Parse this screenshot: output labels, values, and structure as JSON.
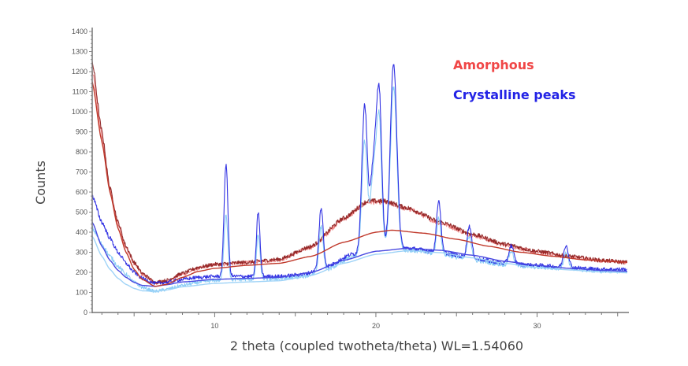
{
  "chart_data": {
    "type": "line",
    "title": "",
    "xlabel": "2 theta (coupled twotheta/theta) WL=1.54060",
    "ylabel": "Counts",
    "xlim": [
      2.4,
      35.6
    ],
    "ylim": [
      0,
      1400
    ],
    "xticks": [
      10,
      20,
      30
    ],
    "yticks": [
      0,
      100,
      200,
      300,
      400,
      500,
      600,
      700,
      800,
      900,
      1000,
      1100,
      1200,
      1300,
      1400
    ],
    "grid": false,
    "legend": {
      "placement": "top-right",
      "entries": [
        {
          "label": "Amorphous",
          "color": "#f04646"
        },
        {
          "label": "Crystalline peaks",
          "color": "#2323e6"
        }
      ]
    },
    "series": [
      {
        "name": "Amorphous (scan)",
        "color": "#8b1a1a",
        "kind": "raw",
        "baseline": [
          [
            2.4,
            1250
          ],
          [
            3,
            900
          ],
          [
            3.5,
            620
          ],
          [
            4,
            450
          ],
          [
            4.5,
            330
          ],
          [
            5,
            250
          ],
          [
            5.5,
            195
          ],
          [
            6.3,
            150
          ],
          [
            7,
            160
          ],
          [
            8,
            195
          ],
          [
            9,
            225
          ],
          [
            10,
            240
          ],
          [
            12,
            250
          ],
          [
            14,
            265
          ],
          [
            16,
            330
          ],
          [
            18,
            470
          ],
          [
            19.5,
            555
          ],
          [
            20.5,
            555
          ],
          [
            22,
            520
          ],
          [
            24,
            450
          ],
          [
            26,
            390
          ],
          [
            28,
            340
          ],
          [
            30,
            305
          ],
          [
            32,
            280
          ],
          [
            34,
            260
          ],
          [
            35.6,
            250
          ]
        ],
        "peaks": []
      },
      {
        "name": "Amorphous (scan 2)",
        "color": "#f08080",
        "kind": "raw",
        "baseline": [
          [
            2.4,
            1200
          ],
          [
            3,
            880
          ],
          [
            3.5,
            610
          ],
          [
            4,
            440
          ],
          [
            4.5,
            320
          ],
          [
            5,
            245
          ],
          [
            5.5,
            190
          ],
          [
            6.3,
            145
          ],
          [
            7,
            155
          ],
          [
            8,
            190
          ],
          [
            9,
            220
          ],
          [
            10,
            238
          ],
          [
            12,
            248
          ],
          [
            14,
            262
          ],
          [
            16,
            325
          ],
          [
            18,
            465
          ],
          [
            19.5,
            550
          ],
          [
            20.5,
            550
          ],
          [
            22,
            515
          ],
          [
            24,
            445
          ],
          [
            26,
            385
          ],
          [
            28,
            335
          ],
          [
            30,
            300
          ],
          [
            32,
            277
          ],
          [
            34,
            258
          ],
          [
            35.6,
            248
          ]
        ],
        "peaks": []
      },
      {
        "name": "Amorphous fit",
        "color": "#c0392b",
        "kind": "fit",
        "baseline": [
          [
            2.4,
            1150
          ],
          [
            3,
            850
          ],
          [
            3.5,
            600
          ],
          [
            4,
            420
          ],
          [
            4.5,
            300
          ],
          [
            5,
            215
          ],
          [
            5.5,
            165
          ],
          [
            6.3,
            130
          ],
          [
            7,
            140
          ],
          [
            8,
            175
          ],
          [
            9,
            205
          ],
          [
            10,
            220
          ],
          [
            12,
            235
          ],
          [
            14,
            245
          ],
          [
            16,
            280
          ],
          [
            18,
            350
          ],
          [
            20,
            400
          ],
          [
            21,
            410
          ],
          [
            23,
            395
          ],
          [
            25,
            365
          ],
          [
            27,
            330
          ],
          [
            29,
            300
          ],
          [
            31,
            280
          ],
          [
            33,
            262
          ],
          [
            35.6,
            250
          ]
        ],
        "peaks": []
      },
      {
        "name": "Crystalline (scan)",
        "color": "#1e1ee0",
        "kind": "raw",
        "baseline": [
          [
            2.4,
            580
          ],
          [
            3,
            450
          ],
          [
            3.5,
            370
          ],
          [
            4,
            300
          ],
          [
            4.5,
            245
          ],
          [
            5,
            200
          ],
          [
            5.5,
            170
          ],
          [
            6.3,
            145
          ],
          [
            7,
            150
          ],
          [
            8,
            165
          ],
          [
            9,
            175
          ],
          [
            10,
            180
          ],
          [
            12,
            180
          ],
          [
            14,
            180
          ],
          [
            15.5,
            190
          ],
          [
            17,
            230
          ],
          [
            18.5,
            290
          ],
          [
            20,
            315
          ],
          [
            22,
            320
          ],
          [
            24,
            300
          ],
          [
            26,
            270
          ],
          [
            28,
            245
          ],
          [
            30,
            235
          ],
          [
            32,
            225
          ],
          [
            34,
            215
          ],
          [
            35.6,
            215
          ]
        ],
        "peaks": [
          [
            10.7,
            560,
            0.12
          ],
          [
            12.7,
            320,
            0.11
          ],
          [
            16.6,
            300,
            0.13
          ],
          [
            19.3,
            730,
            0.17
          ],
          [
            19.85,
            420,
            0.18
          ],
          [
            20.2,
            760,
            0.16
          ],
          [
            21.1,
            930,
            0.2
          ],
          [
            23.9,
            260,
            0.13
          ],
          [
            25.8,
            160,
            0.14
          ],
          [
            28.4,
            90,
            0.15
          ],
          [
            31.8,
            110,
            0.15
          ]
        ]
      },
      {
        "name": "Crystalline (scan 2)",
        "color": "#7ec8f5",
        "kind": "raw",
        "baseline": [
          [
            2.4,
            420
          ],
          [
            3,
            340
          ],
          [
            3.5,
            280
          ],
          [
            4,
            230
          ],
          [
            4.5,
            190
          ],
          [
            5,
            150
          ],
          [
            5.5,
            125
          ],
          [
            6.3,
            105
          ],
          [
            7,
            115
          ],
          [
            8,
            135
          ],
          [
            9,
            150
          ],
          [
            10,
            160
          ],
          [
            12,
            165
          ],
          [
            14,
            168
          ],
          [
            15.5,
            178
          ],
          [
            17,
            215
          ],
          [
            18.5,
            275
          ],
          [
            20,
            300
          ],
          [
            22,
            310
          ],
          [
            24,
            290
          ],
          [
            26,
            260
          ],
          [
            28,
            237
          ],
          [
            30,
            225
          ],
          [
            32,
            215
          ],
          [
            34,
            205
          ],
          [
            35.6,
            205
          ]
        ],
        "peaks": [
          [
            10.7,
            330,
            0.12
          ],
          [
            12.7,
            220,
            0.11
          ],
          [
            16.6,
            220,
            0.13
          ],
          [
            19.3,
            560,
            0.17
          ],
          [
            19.85,
            380,
            0.18
          ],
          [
            20.2,
            640,
            0.16
          ],
          [
            21.1,
            820,
            0.2
          ],
          [
            23.9,
            180,
            0.13
          ],
          [
            25.8,
            120,
            0.14
          ],
          [
            28.4,
            70,
            0.15
          ],
          [
            31.8,
            80,
            0.15
          ]
        ]
      },
      {
        "name": "Crystalline fit",
        "color": "#4848e0",
        "kind": "fit",
        "baseline": [
          [
            2.4,
            450
          ],
          [
            3,
            330
          ],
          [
            3.5,
            260
          ],
          [
            4,
            210
          ],
          [
            4.5,
            175
          ],
          [
            5,
            150
          ],
          [
            5.5,
            135
          ],
          [
            6.3,
            130
          ],
          [
            7,
            138
          ],
          [
            8,
            152
          ],
          [
            10,
            165
          ],
          [
            12,
            170
          ],
          [
            14,
            175
          ],
          [
            16,
            200
          ],
          [
            18,
            260
          ],
          [
            20,
            305
          ],
          [
            22,
            320
          ],
          [
            24,
            310
          ],
          [
            26,
            285
          ],
          [
            28,
            255
          ],
          [
            30,
            235
          ],
          [
            32,
            220
          ],
          [
            34,
            210
          ],
          [
            35.6,
            205
          ]
        ],
        "peaks": []
      },
      {
        "name": "Crystalline fit 2",
        "color": "#9fd3f7",
        "kind": "fit",
        "baseline": [
          [
            2.4,
            380
          ],
          [
            3,
            280
          ],
          [
            3.5,
            215
          ],
          [
            4,
            170
          ],
          [
            4.5,
            140
          ],
          [
            5,
            120
          ],
          [
            5.5,
            108
          ],
          [
            6.3,
            105
          ],
          [
            7,
            112
          ],
          [
            8,
            128
          ],
          [
            10,
            145
          ],
          [
            12,
            152
          ],
          [
            14,
            158
          ],
          [
            16,
            185
          ],
          [
            18,
            245
          ],
          [
            20,
            290
          ],
          [
            22,
            308
          ],
          [
            24,
            298
          ],
          [
            26,
            272
          ],
          [
            28,
            245
          ],
          [
            30,
            225
          ],
          [
            32,
            212
          ],
          [
            34,
            202
          ],
          [
            35.6,
            198
          ]
        ],
        "peaks": []
      }
    ]
  }
}
